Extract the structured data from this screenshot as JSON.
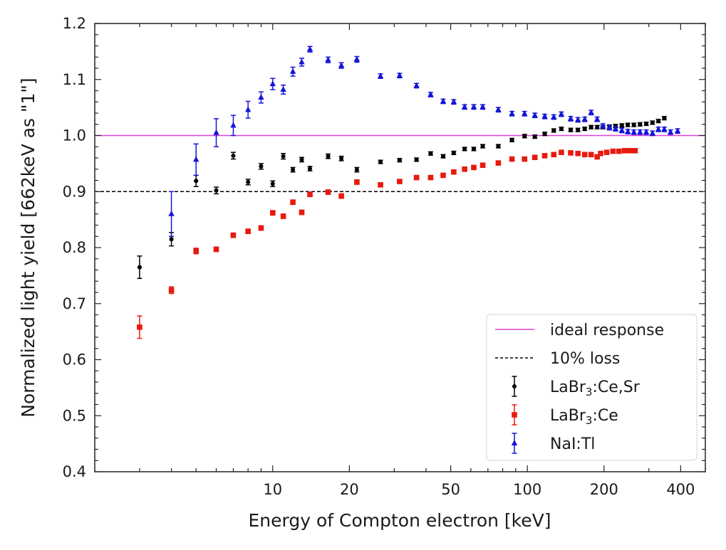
{
  "chart_data": {
    "type": "scatter",
    "xlabel": "Energy of Compton electron [keV]",
    "ylabel": "Normalized light yield [662keV as \"1\"]",
    "xscale": "log",
    "xlim": [
      2,
      500
    ],
    "ylim": [
      0.4,
      1.2
    ],
    "xticks": [
      10,
      20,
      50,
      100,
      200,
      400
    ],
    "xtick_labels": [
      "10",
      "20",
      "50",
      "100",
      "200",
      "400"
    ],
    "yticks": [
      0.4,
      0.5,
      0.6,
      0.7,
      0.8,
      0.9,
      1.0,
      1.1,
      1.2
    ],
    "ytick_labels": [
      "0.4",
      "0.5",
      "0.6",
      "0.7",
      "0.8",
      "0.9",
      "1.0",
      "1.1",
      "1.2"
    ],
    "grid": false,
    "legend_position": "bottom-right",
    "reference_lines": [
      {
        "name": "ideal response",
        "y": 1.0,
        "color": "#e040e0",
        "style": "solid"
      },
      {
        "name": "10% loss",
        "y": 0.9,
        "color": "#000000",
        "style": "dashed"
      }
    ],
    "series": [
      {
        "name": "LaBr3:Ce,Sr",
        "name_main": "LaBr",
        "name_sub": "3",
        "name_rest": ":Ce,Sr",
        "color": "#000000",
        "marker": "circle",
        "x": [
          3,
          4,
          5,
          6,
          7,
          8,
          9,
          10,
          11,
          12,
          13,
          14,
          16.5,
          18.6,
          21.4,
          26.5,
          31.5,
          36.7,
          41.7,
          46.7,
          51.4,
          56.7,
          61.6,
          66.8,
          76.9,
          87,
          97.5,
          107,
          117,
          127,
          136,
          148,
          158,
          168,
          178,
          188,
          198,
          210,
          222,
          235,
          248,
          262,
          277,
          293,
          310,
          327,
          345
        ],
        "y": [
          0.765,
          0.815,
          0.919,
          0.902,
          0.964,
          0.917,
          0.945,
          0.914,
          0.963,
          0.939,
          0.957,
          0.941,
          0.963,
          0.959,
          0.939,
          0.953,
          0.956,
          0.957,
          0.968,
          0.963,
          0.969,
          0.976,
          0.976,
          0.981,
          0.981,
          0.992,
          0.999,
          0.998,
          1.003,
          1.009,
          1.012,
          1.01,
          1.01,
          1.012,
          1.015,
          1.015,
          1.015,
          1.016,
          1.017,
          1.018,
          1.019,
          1.019,
          1.02,
          1.021,
          1.023,
          1.026,
          1.031
        ],
        "yerr": [
          0.02,
          0.012,
          0.01,
          0.006,
          0.006,
          0.005,
          0.005,
          0.005,
          0.005,
          0.004,
          0.004,
          0.004,
          0.004,
          0.004,
          0.004,
          0.003,
          0.003,
          0.003,
          0.003,
          0.003,
          0.003,
          0.003,
          0.003,
          0.003,
          0.003,
          0.003,
          0.003,
          0.003,
          0.003,
          0.003,
          0.003,
          0.003,
          0.003,
          0.003,
          0.003,
          0.003,
          0.003,
          0.003,
          0.003,
          0.003,
          0.003,
          0.003,
          0.003,
          0.003,
          0.003,
          0.003,
          0.003
        ]
      },
      {
        "name": "LaBr3:Ce",
        "name_main": "LaBr",
        "name_sub": "3",
        "name_rest": ":Ce",
        "color": "#e8190f",
        "marker": "square",
        "x": [
          3,
          4,
          5,
          6,
          7,
          8,
          9,
          10,
          11,
          12,
          13,
          14,
          16.5,
          18.6,
          21.4,
          26.5,
          31.5,
          36.7,
          41.7,
          46.7,
          51.4,
          56.7,
          61.6,
          66.8,
          76.9,
          87,
          97.5,
          107,
          117,
          127,
          136,
          148,
          158,
          168,
          178,
          188,
          194,
          205,
          217,
          229,
          241,
          253,
          265
        ],
        "y": [
          0.658,
          0.724,
          0.794,
          0.797,
          0.822,
          0.829,
          0.835,
          0.862,
          0.856,
          0.881,
          0.863,
          0.895,
          0.899,
          0.892,
          0.917,
          0.912,
          0.918,
          0.925,
          0.925,
          0.929,
          0.935,
          0.94,
          0.943,
          0.947,
          0.951,
          0.958,
          0.958,
          0.961,
          0.964,
          0.966,
          0.97,
          0.969,
          0.968,
          0.966,
          0.966,
          0.962,
          0.968,
          0.97,
          0.972,
          0.972,
          0.973,
          0.973,
          0.973
        ],
        "yerr": [
          0.02,
          0.006,
          0.005,
          0.004,
          0.004,
          0.004,
          0.004,
          0.004,
          0.004,
          0.004,
          0.004,
          0.004,
          0.004,
          0.004,
          0.004,
          0.003,
          0.003,
          0.003,
          0.003,
          0.003,
          0.003,
          0.003,
          0.003,
          0.003,
          0.003,
          0.003,
          0.003,
          0.003,
          0.003,
          0.003,
          0.003,
          0.003,
          0.003,
          0.003,
          0.003,
          0.003,
          0.003,
          0.003,
          0.003,
          0.003,
          0.003,
          0.003,
          0.003
        ]
      },
      {
        "name": "NaI:Tl",
        "name_main": "NaI:Tl",
        "name_sub": "",
        "name_rest": "",
        "color": "#1515d8",
        "marker": "triangle",
        "x": [
          4,
          5,
          6,
          7,
          8,
          9,
          10,
          11,
          12,
          13,
          14,
          16.5,
          18.6,
          21.4,
          26.5,
          31.5,
          36.7,
          41.7,
          46.7,
          51.4,
          56.7,
          61.6,
          66.8,
          76.9,
          87,
          97.5,
          107,
          117,
          127,
          136,
          148,
          158,
          168,
          178,
          188,
          198,
          210,
          222,
          235,
          248,
          262,
          277,
          293,
          310,
          327,
          345,
          365,
          389
        ],
        "y": [
          0.86,
          0.957,
          1.005,
          1.018,
          1.046,
          1.068,
          1.092,
          1.082,
          1.114,
          1.131,
          1.154,
          1.135,
          1.125,
          1.136,
          1.106,
          1.107,
          1.089,
          1.073,
          1.061,
          1.06,
          1.051,
          1.051,
          1.051,
          1.046,
          1.039,
          1.039,
          1.036,
          1.034,
          1.033,
          1.038,
          1.03,
          1.028,
          1.029,
          1.041,
          1.029,
          1.017,
          1.014,
          1.012,
          1.009,
          1.007,
          1.006,
          1.006,
          1.006,
          1.004,
          1.011,
          1.011,
          1.006,
          1.008
        ],
        "yerr": [
          0.04,
          0.028,
          0.025,
          0.018,
          0.015,
          0.01,
          0.01,
          0.008,
          0.008,
          0.007,
          0.005,
          0.005,
          0.005,
          0.005,
          0.004,
          0.004,
          0.004,
          0.004,
          0.004,
          0.004,
          0.004,
          0.004,
          0.004,
          0.004,
          0.004,
          0.004,
          0.004,
          0.004,
          0.004,
          0.004,
          0.004,
          0.004,
          0.004,
          0.004,
          0.004,
          0.004,
          0.004,
          0.004,
          0.004,
          0.004,
          0.004,
          0.004,
          0.004,
          0.004,
          0.004,
          0.004,
          0.004,
          0.004
        ]
      }
    ]
  }
}
